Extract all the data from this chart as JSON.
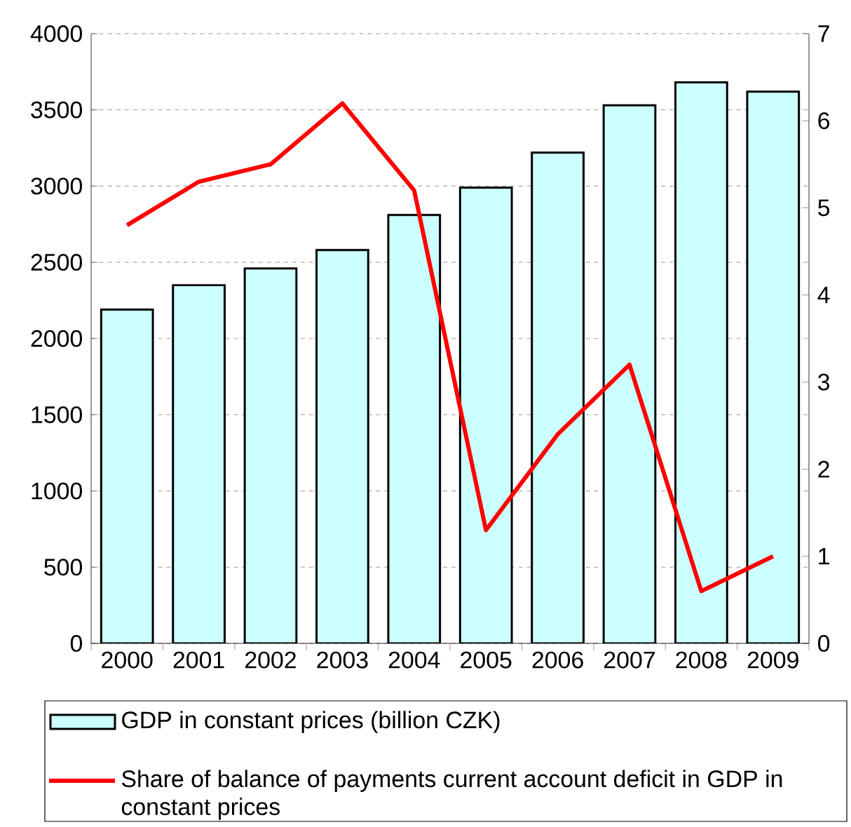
{
  "chart_data": {
    "type": "bar",
    "categories": [
      "2000",
      "2001",
      "2002",
      "2003",
      "2004",
      "2005",
      "2006",
      "2007",
      "2008",
      "2009"
    ],
    "series": [
      {
        "name": "GDP in constant prices (billion CZK)",
        "color": "#ccffff",
        "values": [
          2190,
          2350,
          2460,
          2580,
          2810,
          2990,
          3220,
          3530,
          3680,
          3620
        ]
      },
      {
        "name": "Share of balance of payments current account deficit in GDP in constant prices",
        "type": "line",
        "axis": "y2",
        "color": "#ff0000",
        "marker": "none",
        "line_style": "solid",
        "values": [
          4.8,
          5.3,
          5.5,
          6.2,
          5.2,
          1.3,
          2.4,
          3.2,
          0.6,
          1.0
        ]
      }
    ],
    "ylim": [
      0,
      4000
    ],
    "yticks": [
      0,
      500,
      1000,
      1500,
      2000,
      2500,
      3000,
      3500,
      4000
    ],
    "y2lim": [
      0,
      7
    ],
    "y2ticks": [
      0,
      1,
      2,
      3,
      4,
      5,
      6,
      7
    ],
    "grid": "y",
    "legend": "bottom"
  }
}
